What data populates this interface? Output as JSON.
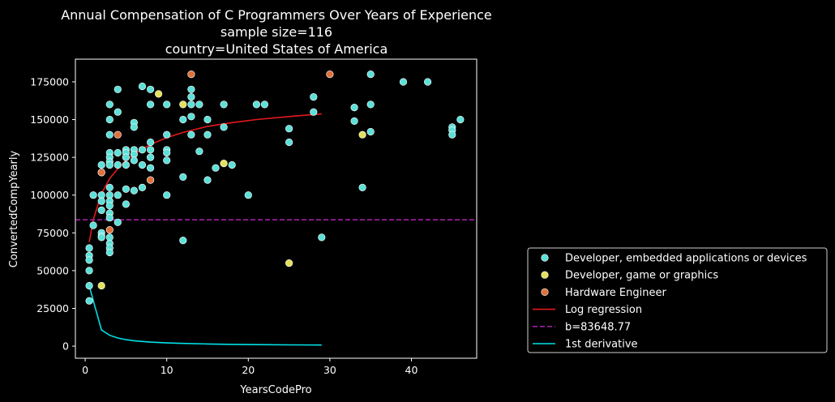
{
  "chart_data": {
    "type": "scatter",
    "title": [
      "Annual Compensation of C Programmers Over Years of Experience",
      "sample size=116",
      "country=United States of America"
    ],
    "xlabel": "YearsCodePro",
    "ylabel": "ConvertedCompYearly",
    "xlim": [
      -1.2,
      48
    ],
    "ylim": [
      -8000,
      190000
    ],
    "xticks": [
      0,
      10,
      20,
      30,
      40
    ],
    "yticks": [
      0,
      25000,
      50000,
      75000,
      100000,
      125000,
      150000,
      175000
    ],
    "grid": false,
    "legend_position": "lower-right-outside",
    "series": [
      {
        "name": "Developer, embedded applications or devices",
        "kind": "scatter",
        "color": "#5ce0d8",
        "points": [
          [
            0.5,
            65000
          ],
          [
            0.5,
            60000
          ],
          [
            0.5,
            57000
          ],
          [
            0.5,
            50000
          ],
          [
            0.5,
            40000
          ],
          [
            0.5,
            30000
          ],
          [
            1,
            100000
          ],
          [
            1,
            80000
          ],
          [
            2,
            120000
          ],
          [
            2,
            115000
          ],
          [
            2,
            100000
          ],
          [
            2,
            96000
          ],
          [
            2,
            90000
          ],
          [
            2,
            75000
          ],
          [
            2,
            73000
          ],
          [
            2,
            72000
          ],
          [
            3,
            160000
          ],
          [
            3,
            150000
          ],
          [
            3,
            140000
          ],
          [
            3,
            128000
          ],
          [
            3,
            125000
          ],
          [
            3,
            122000
          ],
          [
            3,
            120000
          ],
          [
            3,
            105000
          ],
          [
            3,
            100000
          ],
          [
            3,
            96000
          ],
          [
            3,
            93000
          ],
          [
            3,
            88000
          ],
          [
            3,
            85000
          ],
          [
            3,
            72000
          ],
          [
            3,
            68000
          ],
          [
            3,
            65000
          ],
          [
            3,
            62000
          ],
          [
            4,
            170000
          ],
          [
            4,
            155000
          ],
          [
            4,
            128000
          ],
          [
            4,
            120000
          ],
          [
            4,
            100000
          ],
          [
            4,
            82000
          ],
          [
            5,
            130000
          ],
          [
            5,
            128000
          ],
          [
            5,
            125000
          ],
          [
            5,
            120000
          ],
          [
            5,
            104000
          ],
          [
            5,
            94000
          ],
          [
            6,
            148000
          ],
          [
            6,
            145000
          ],
          [
            6,
            130000
          ],
          [
            6,
            127000
          ],
          [
            6,
            123000
          ],
          [
            6,
            103000
          ],
          [
            7,
            172000
          ],
          [
            7,
            130000
          ],
          [
            7,
            120000
          ],
          [
            7,
            105000
          ],
          [
            8,
            170000
          ],
          [
            8,
            160000
          ],
          [
            8,
            135000
          ],
          [
            8,
            130000
          ],
          [
            8,
            125000
          ],
          [
            8,
            118000
          ],
          [
            10,
            160000
          ],
          [
            10,
            140000
          ],
          [
            10,
            130000
          ],
          [
            10,
            128000
          ],
          [
            10,
            123000
          ],
          [
            10,
            100000
          ],
          [
            12,
            150000
          ],
          [
            12,
            112000
          ],
          [
            12,
            70000
          ],
          [
            13,
            170000
          ],
          [
            13,
            165000
          ],
          [
            13,
            160000
          ],
          [
            13,
            152000
          ],
          [
            13,
            140000
          ],
          [
            14,
            160000
          ],
          [
            14,
            129000
          ],
          [
            15,
            150000
          ],
          [
            15,
            140000
          ],
          [
            15,
            110000
          ],
          [
            16,
            118000
          ],
          [
            17,
            160000
          ],
          [
            17,
            145000
          ],
          [
            18,
            120000
          ],
          [
            20,
            100000
          ],
          [
            21,
            160000
          ],
          [
            22,
            160000
          ],
          [
            25,
            144000
          ],
          [
            25,
            135000
          ],
          [
            28,
            165000
          ],
          [
            28,
            155000
          ],
          [
            29,
            72000
          ],
          [
            33,
            158000
          ],
          [
            33,
            149000
          ],
          [
            34,
            105000
          ],
          [
            35,
            180000
          ],
          [
            35,
            160000
          ],
          [
            35,
            142000
          ],
          [
            39,
            175000
          ],
          [
            42,
            175000
          ],
          [
            45,
            145000
          ],
          [
            45,
            143000
          ],
          [
            45,
            140000
          ],
          [
            46,
            150000
          ]
        ]
      },
      {
        "name": "Developer, game or graphics",
        "kind": "scatter",
        "color": "#e3e15c",
        "points": [
          [
            2,
            40000
          ],
          [
            9,
            167000
          ],
          [
            12,
            160000
          ],
          [
            17,
            121000
          ],
          [
            25,
            55000
          ],
          [
            34,
            140000
          ]
        ]
      },
      {
        "name": "Hardware Engineer",
        "kind": "scatter",
        "color": "#e0703c",
        "points": [
          [
            2,
            115000
          ],
          [
            3,
            77000
          ],
          [
            4,
            140000
          ],
          [
            8,
            110000
          ],
          [
            13,
            180000
          ],
          [
            30,
            180000
          ]
        ]
      },
      {
        "name": "Log regression",
        "kind": "line",
        "color": "#e31a1c",
        "points": [
          [
            0.5,
            69000
          ],
          [
            1,
            83800
          ],
          [
            2,
            101000
          ],
          [
            3,
            111000
          ],
          [
            4,
            117500
          ],
          [
            5,
            123000
          ],
          [
            6,
            127000
          ],
          [
            7,
            130500
          ],
          [
            8,
            133500
          ],
          [
            10,
            138000
          ],
          [
            12,
            141500
          ],
          [
            15,
            145500
          ],
          [
            18,
            148000
          ],
          [
            21,
            150000
          ],
          [
            25,
            152000
          ],
          [
            29,
            153800
          ]
        ]
      },
      {
        "name": "b=83648.77",
        "kind": "hline",
        "color": "#a020a0",
        "y": 83648.77
      },
      {
        "name": "1st derivative",
        "kind": "line",
        "color": "#00e0e8",
        "points": [
          [
            0.5,
            40000
          ],
          [
            1,
            30000
          ],
          [
            2,
            10700
          ],
          [
            3,
            7200
          ],
          [
            4,
            5400
          ],
          [
            5,
            4300
          ],
          [
            6,
            3600
          ],
          [
            7,
            3100
          ],
          [
            8,
            2700
          ],
          [
            10,
            2150
          ],
          [
            12,
            1800
          ],
          [
            15,
            1450
          ],
          [
            18,
            1200
          ],
          [
            21,
            1030
          ],
          [
            25,
            870
          ],
          [
            29,
            750
          ]
        ]
      }
    ]
  }
}
